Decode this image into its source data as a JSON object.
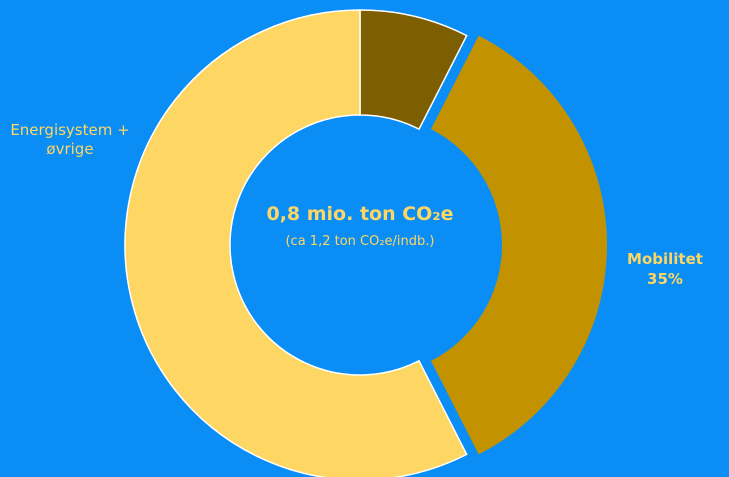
{
  "chart_data": {
    "type": "pie",
    "title": "0,8 mio. ton CO₂e",
    "subtitle": "(ca 1,2 ton CO₂e/indb.)",
    "categories": [
      null,
      "Mobilitet",
      "Energisystem + øvrige"
    ],
    "values": [
      7.5,
      35,
      57.5
    ],
    "value_labels": [
      null,
      "35%",
      null
    ],
    "colors": [
      "#7d5e00",
      "#c39200",
      "#fdd663"
    ],
    "donut": true
  }
}
